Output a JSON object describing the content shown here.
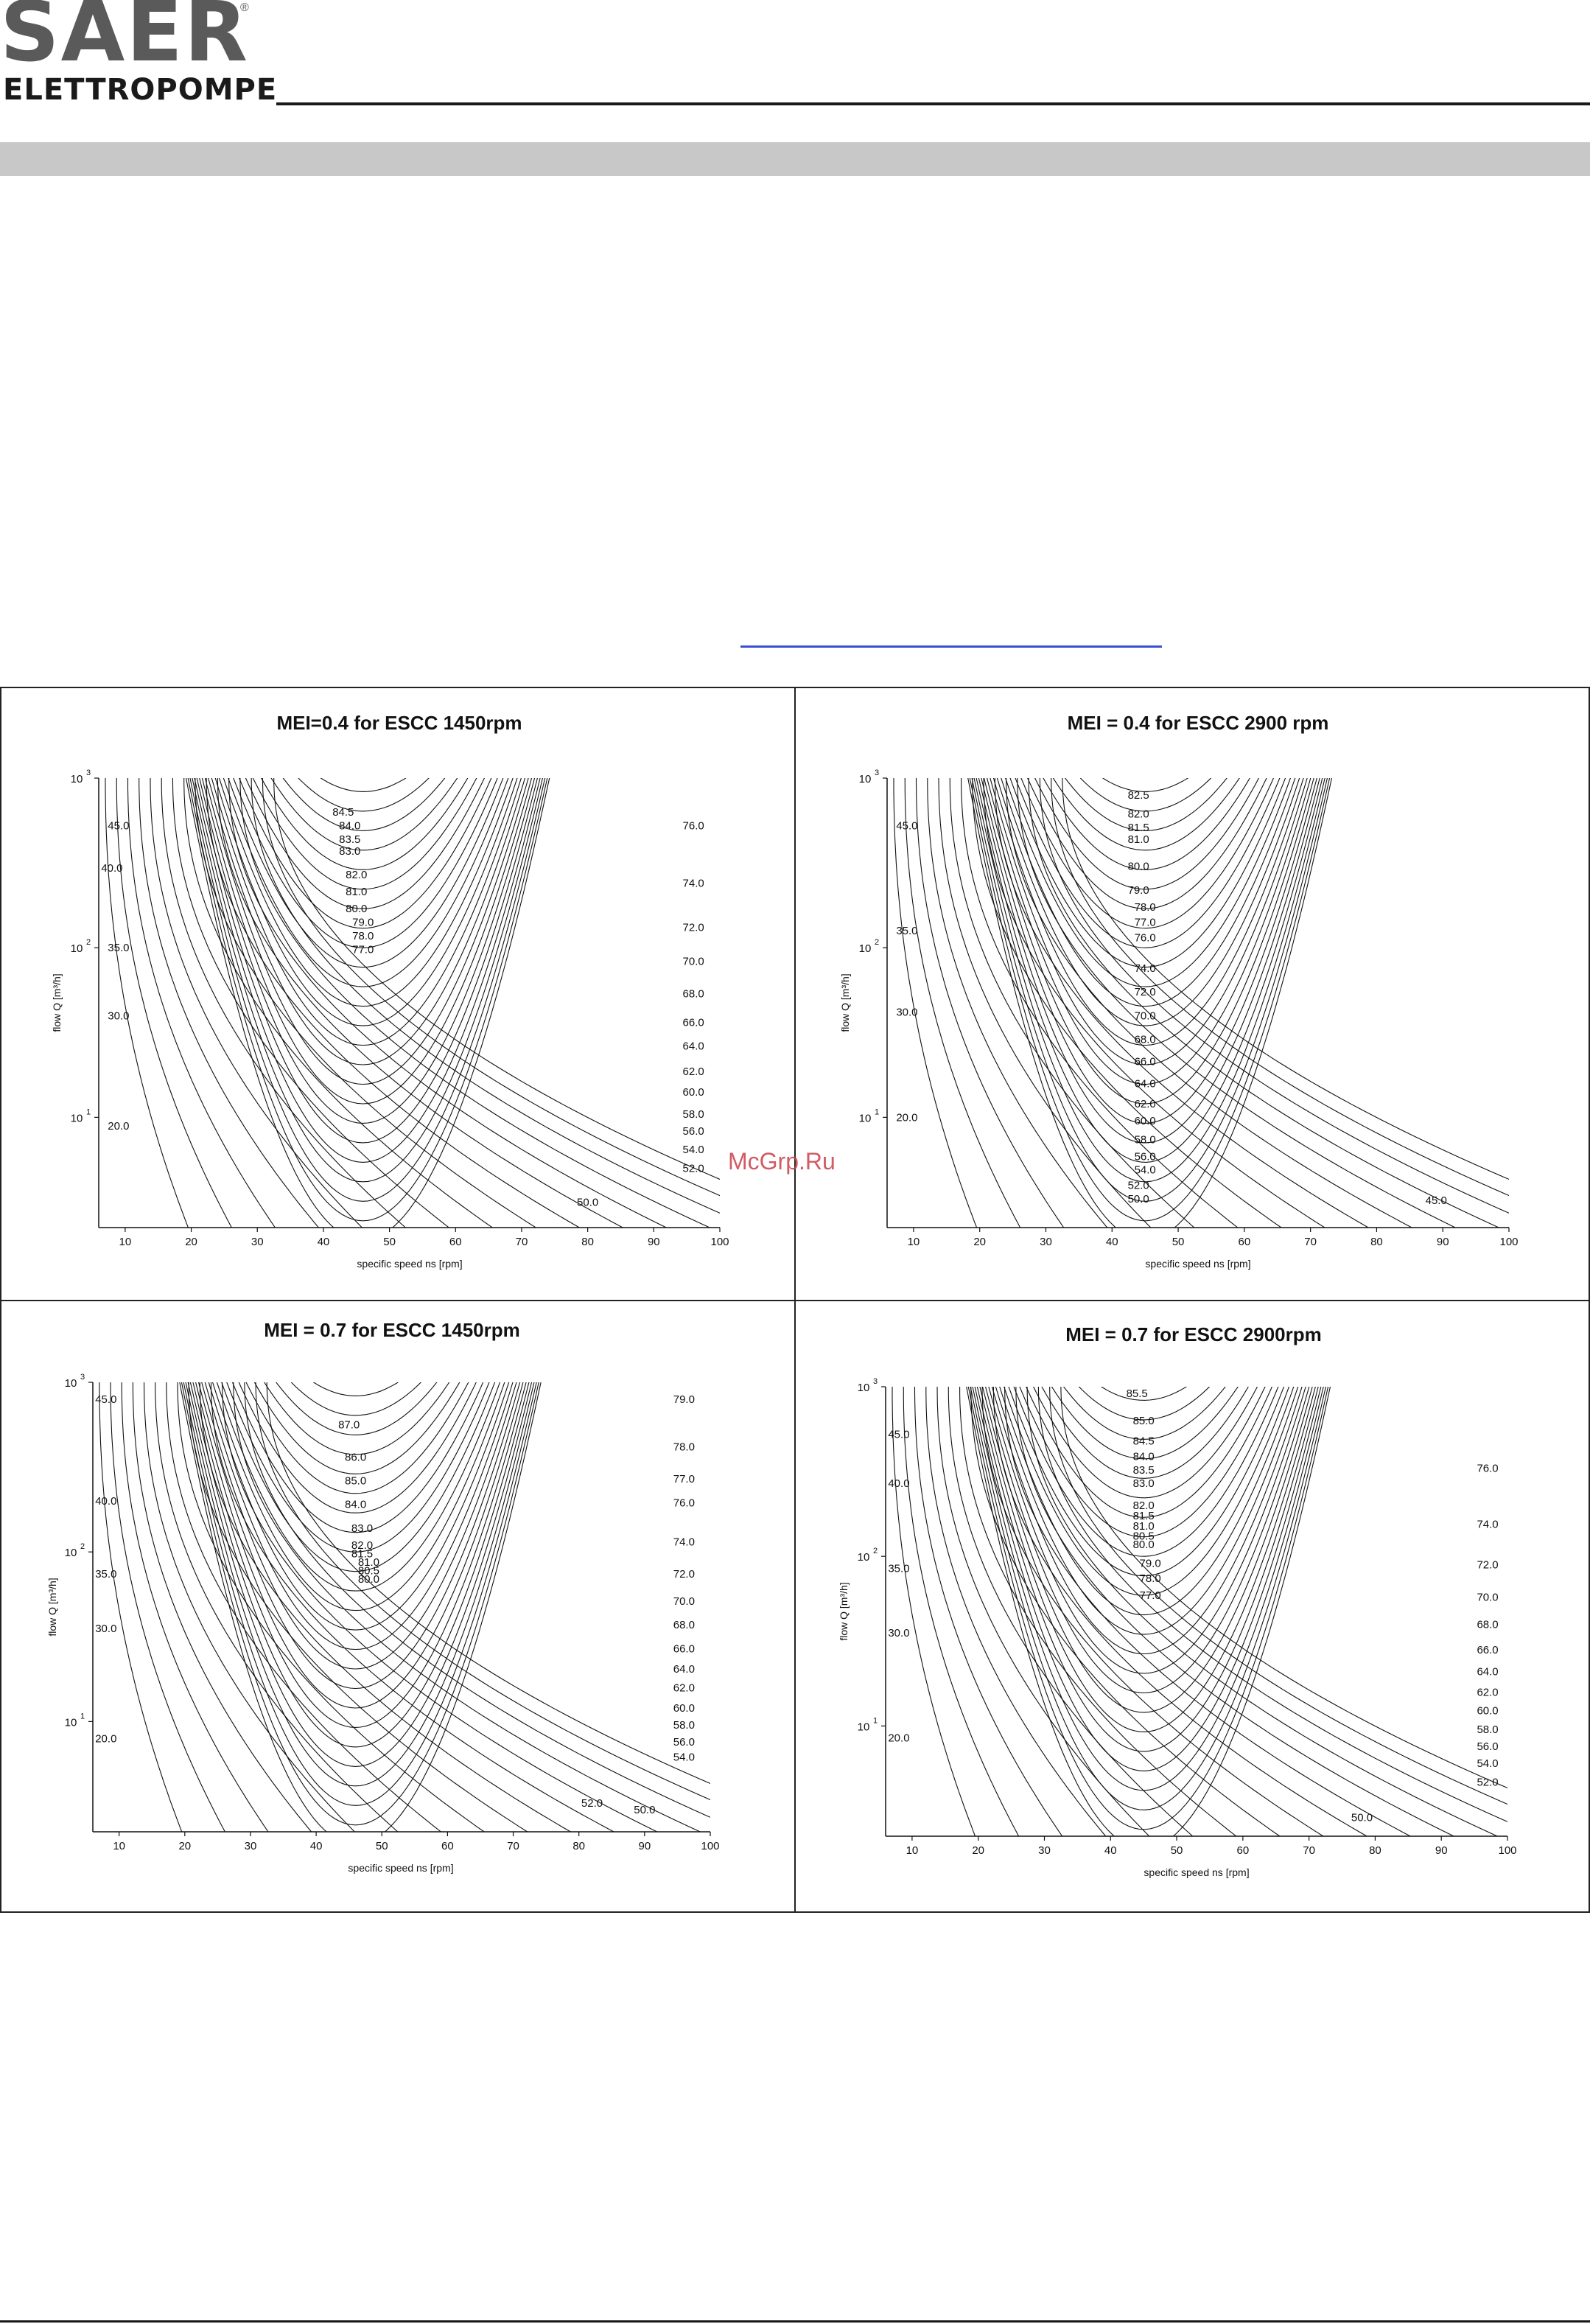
{
  "header": {
    "logo_main": "SAER",
    "logo_registered": "®",
    "logo_sub": "ELETTROPOMPE"
  },
  "watermark": "McGrp.Ru",
  "colors": {
    "logo_gray": "#5a5a5a",
    "band_gray": "#c8c8c8",
    "link_blue": "#3b4fd6",
    "watermark_red": "#c8404a"
  },
  "chart_data": [
    {
      "type": "contour",
      "title": "MEI=0.4 for ESCC 1450rpm",
      "xlabel": "specific speed ns [rpm]",
      "ylabel": "flow Q [m³/h]",
      "xlim": [
        6,
        100
      ],
      "ylim_log10": [
        0.35,
        3
      ],
      "y_scale": "log",
      "xticks": [
        "10",
        "20",
        "30",
        "40",
        "50",
        "60",
        "70",
        "80",
        "90",
        "100"
      ],
      "yticks": [
        {
          "base": "10",
          "exp": "1"
        },
        {
          "base": "10",
          "exp": "2"
        },
        {
          "base": "10",
          "exp": "3"
        }
      ],
      "ridge_ns": 46,
      "contour_labels": [
        {
          "text": "84.5",
          "x": 43,
          "logq": 2.8
        },
        {
          "text": "84.0",
          "x": 44,
          "logq": 2.72
        },
        {
          "text": "83.5",
          "x": 44,
          "logq": 2.64
        },
        {
          "text": "83.0",
          "x": 44,
          "logq": 2.57
        },
        {
          "text": "82.0",
          "x": 45,
          "logq": 2.43
        },
        {
          "text": "81.0",
          "x": 45,
          "logq": 2.33
        },
        {
          "text": "80.0",
          "x": 45,
          "logq": 2.23
        },
        {
          "text": "79.0",
          "x": 46,
          "logq": 2.15
        },
        {
          "text": "78.0",
          "x": 46,
          "logq": 2.07
        },
        {
          "text": "77.0",
          "x": 46,
          "logq": 1.99
        },
        {
          "text": "76.0",
          "x": 96,
          "logq": 2.72
        },
        {
          "text": "74.0",
          "x": 96,
          "logq": 2.38
        },
        {
          "text": "72.0",
          "x": 96,
          "logq": 2.12
        },
        {
          "text": "70.0",
          "x": 96,
          "logq": 1.92
        },
        {
          "text": "68.0",
          "x": 96,
          "logq": 1.73
        },
        {
          "text": "66.0",
          "x": 96,
          "logq": 1.56
        },
        {
          "text": "64.0",
          "x": 96,
          "logq": 1.42
        },
        {
          "text": "62.0",
          "x": 96,
          "logq": 1.27
        },
        {
          "text": "60.0",
          "x": 96,
          "logq": 1.15
        },
        {
          "text": "58.0",
          "x": 96,
          "logq": 1.02
        },
        {
          "text": "56.0",
          "x": 96,
          "logq": 0.92
        },
        {
          "text": "54.0",
          "x": 96,
          "logq": 0.81
        },
        {
          "text": "52.0",
          "x": 96,
          "logq": 0.7
        },
        {
          "text": "50.0",
          "x": 80,
          "logq": 0.5
        },
        {
          "text": "45.0",
          "x": 9,
          "logq": 2.72
        },
        {
          "text": "40.0",
          "x": 8,
          "logq": 2.47
        },
        {
          "text": "35.0",
          "x": 9,
          "logq": 2.0
        },
        {
          "text": "30.0",
          "x": 9,
          "logq": 1.6
        },
        {
          "text": "20.0",
          "x": 9,
          "logq": 0.95
        }
      ]
    },
    {
      "type": "contour",
      "title": "MEI = 0.4 for ESCC 2900 rpm",
      "xlabel": "specific speed ns [rpm]",
      "ylabel": "flow Q [m³/h]",
      "xlim": [
        6,
        100
      ],
      "ylim_log10": [
        0.35,
        3
      ],
      "y_scale": "log",
      "xticks": [
        "10",
        "20",
        "30",
        "40",
        "50",
        "60",
        "70",
        "80",
        "90",
        "100"
      ],
      "yticks": [
        {
          "base": "10",
          "exp": "1"
        },
        {
          "base": "10",
          "exp": "2"
        },
        {
          "base": "10",
          "exp": "3"
        }
      ],
      "ridge_ns": 45,
      "contour_labels": [
        {
          "text": "82.5",
          "x": 44,
          "logq": 2.9
        },
        {
          "text": "82.0",
          "x": 44,
          "logq": 2.79
        },
        {
          "text": "81.5",
          "x": 44,
          "logq": 2.71
        },
        {
          "text": "81.0",
          "x": 44,
          "logq": 2.64
        },
        {
          "text": "80.0",
          "x": 44,
          "logq": 2.48
        },
        {
          "text": "79.0",
          "x": 44,
          "logq": 2.34
        },
        {
          "text": "78.0",
          "x": 45,
          "logq": 2.24
        },
        {
          "text": "77.0",
          "x": 45,
          "logq": 2.15
        },
        {
          "text": "76.0",
          "x": 45,
          "logq": 2.06
        },
        {
          "text": "74.0",
          "x": 45,
          "logq": 1.88
        },
        {
          "text": "72.0",
          "x": 45,
          "logq": 1.74
        },
        {
          "text": "70.0",
          "x": 45,
          "logq": 1.6
        },
        {
          "text": "68.0",
          "x": 45,
          "logq": 1.46
        },
        {
          "text": "66.0",
          "x": 45,
          "logq": 1.33
        },
        {
          "text": "64.0",
          "x": 45,
          "logq": 1.2
        },
        {
          "text": "62.0",
          "x": 45,
          "logq": 1.08
        },
        {
          "text": "60.0",
          "x": 45,
          "logq": 0.98
        },
        {
          "text": "58.0",
          "x": 45,
          "logq": 0.87
        },
        {
          "text": "56.0",
          "x": 45,
          "logq": 0.77
        },
        {
          "text": "54.0",
          "x": 45,
          "logq": 0.69
        },
        {
          "text": "52.0",
          "x": 44,
          "logq": 0.6
        },
        {
          "text": "50.0",
          "x": 44,
          "logq": 0.52
        },
        {
          "text": "45.0",
          "x": 89,
          "logq": 0.51
        },
        {
          "text": "45.0",
          "x": 9,
          "logq": 2.72
        },
        {
          "text": "35.0",
          "x": 9,
          "logq": 2.1
        },
        {
          "text": "30.0",
          "x": 9,
          "logq": 1.62
        },
        {
          "text": "20.0",
          "x": 9,
          "logq": 1.0
        }
      ]
    },
    {
      "type": "contour",
      "title": "MEI = 0.7 for ESCC 1450rpm",
      "xlabel": "specific speed ns [rpm]",
      "ylabel": "flow Q [m³/h]",
      "xlim": [
        6,
        100
      ],
      "ylim_log10": [
        0.35,
        3
      ],
      "y_scale": "log",
      "xticks": [
        "10",
        "20",
        "30",
        "40",
        "50",
        "60",
        "70",
        "80",
        "90",
        "100"
      ],
      "yticks": [
        {
          "base": "10",
          "exp": "1"
        },
        {
          "base": "10",
          "exp": "2"
        },
        {
          "base": "10",
          "exp": "3"
        }
      ],
      "ridge_ns": 46,
      "contour_labels": [
        {
          "text": "87.0",
          "x": 45,
          "logq": 2.75
        },
        {
          "text": "86.0",
          "x": 46,
          "logq": 2.56
        },
        {
          "text": "85.0",
          "x": 46,
          "logq": 2.42
        },
        {
          "text": "84.0",
          "x": 46,
          "logq": 2.28
        },
        {
          "text": "83.0",
          "x": 47,
          "logq": 2.14
        },
        {
          "text": "82.0",
          "x": 47,
          "logq": 2.04
        },
        {
          "text": "81.5",
          "x": 47,
          "logq": 1.99
        },
        {
          "text": "81.0",
          "x": 48,
          "logq": 1.94
        },
        {
          "text": "80.5",
          "x": 48,
          "logq": 1.89
        },
        {
          "text": "80.0",
          "x": 48,
          "logq": 1.84
        },
        {
          "text": "79.0",
          "x": 96,
          "logq": 2.9
        },
        {
          "text": "78.0",
          "x": 96,
          "logq": 2.62
        },
        {
          "text": "77.0",
          "x": 96,
          "logq": 2.43
        },
        {
          "text": "76.0",
          "x": 96,
          "logq": 2.29
        },
        {
          "text": "74.0",
          "x": 96,
          "logq": 2.06
        },
        {
          "text": "72.0",
          "x": 96,
          "logq": 1.87
        },
        {
          "text": "70.0",
          "x": 96,
          "logq": 1.71
        },
        {
          "text": "68.0",
          "x": 96,
          "logq": 1.57
        },
        {
          "text": "66.0",
          "x": 96,
          "logq": 1.43
        },
        {
          "text": "64.0",
          "x": 96,
          "logq": 1.31
        },
        {
          "text": "62.0",
          "x": 96,
          "logq": 1.2
        },
        {
          "text": "60.0",
          "x": 96,
          "logq": 1.08
        },
        {
          "text": "58.0",
          "x": 96,
          "logq": 0.98
        },
        {
          "text": "56.0",
          "x": 96,
          "logq": 0.88
        },
        {
          "text": "54.0",
          "x": 96,
          "logq": 0.79
        },
        {
          "text": "52.0",
          "x": 82,
          "logq": 0.52
        },
        {
          "text": "50.0",
          "x": 90,
          "logq": 0.48
        },
        {
          "text": "45.0",
          "x": 8,
          "logq": 2.9
        },
        {
          "text": "40.0",
          "x": 8,
          "logq": 2.3
        },
        {
          "text": "35.0",
          "x": 8,
          "logq": 1.87
        },
        {
          "text": "30.0",
          "x": 8,
          "logq": 1.55
        },
        {
          "text": "20.0",
          "x": 8,
          "logq": 0.9
        }
      ]
    },
    {
      "type": "contour",
      "title": "MEI = 0.7 for ESCC 2900rpm",
      "xlabel": "specific speed ns [rpm]",
      "ylabel": "flow Q [m³/h]",
      "xlim": [
        6,
        100
      ],
      "ylim_log10": [
        0.35,
        3
      ],
      "y_scale": "log",
      "xticks": [
        "10",
        "20",
        "30",
        "40",
        "50",
        "60",
        "70",
        "80",
        "90",
        "100"
      ],
      "yticks": [
        {
          "base": "10",
          "exp": "1"
        },
        {
          "base": "10",
          "exp": "2"
        },
        {
          "base": "10",
          "exp": "3"
        }
      ],
      "ridge_ns": 45,
      "contour_labels": [
        {
          "text": "85.5",
          "x": 44,
          "logq": 2.96
        },
        {
          "text": "85.0",
          "x": 45,
          "logq": 2.8
        },
        {
          "text": "84.5",
          "x": 45,
          "logq": 2.68
        },
        {
          "text": "84.0",
          "x": 45,
          "logq": 2.59
        },
        {
          "text": "83.5",
          "x": 45,
          "logq": 2.51
        },
        {
          "text": "83.0",
          "x": 45,
          "logq": 2.43
        },
        {
          "text": "82.0",
          "x": 45,
          "logq": 2.3
        },
        {
          "text": "81.5",
          "x": 45,
          "logq": 2.24
        },
        {
          "text": "81.0",
          "x": 45,
          "logq": 2.18
        },
        {
          "text": "80.5",
          "x": 45,
          "logq": 2.12
        },
        {
          "text": "80.0",
          "x": 45,
          "logq": 2.07
        },
        {
          "text": "79.0",
          "x": 46,
          "logq": 1.96
        },
        {
          "text": "78.0",
          "x": 46,
          "logq": 1.87
        },
        {
          "text": "77.0",
          "x": 46,
          "logq": 1.77
        },
        {
          "text": "76.0",
          "x": 97,
          "logq": 2.52
        },
        {
          "text": "74.0",
          "x": 97,
          "logq": 2.19
        },
        {
          "text": "72.0",
          "x": 97,
          "logq": 1.95
        },
        {
          "text": "70.0",
          "x": 97,
          "logq": 1.76
        },
        {
          "text": "68.0",
          "x": 97,
          "logq": 1.6
        },
        {
          "text": "66.0",
          "x": 97,
          "logq": 1.45
        },
        {
          "text": "64.0",
          "x": 97,
          "logq": 1.32
        },
        {
          "text": "62.0",
          "x": 97,
          "logq": 1.2
        },
        {
          "text": "60.0",
          "x": 97,
          "logq": 1.09
        },
        {
          "text": "58.0",
          "x": 97,
          "logq": 0.98
        },
        {
          "text": "56.0",
          "x": 97,
          "logq": 0.88
        },
        {
          "text": "54.0",
          "x": 97,
          "logq": 0.78
        },
        {
          "text": "52.0",
          "x": 97,
          "logq": 0.67
        },
        {
          "text": "50.0",
          "x": 78,
          "logq": 0.46
        },
        {
          "text": "45.0",
          "x": 8,
          "logq": 2.72
        },
        {
          "text": "40.0",
          "x": 8,
          "logq": 2.43
        },
        {
          "text": "35.0",
          "x": 8,
          "logq": 1.93
        },
        {
          "text": "30.0",
          "x": 8,
          "logq": 1.55
        },
        {
          "text": "20.0",
          "x": 8,
          "logq": 0.93
        }
      ]
    }
  ]
}
